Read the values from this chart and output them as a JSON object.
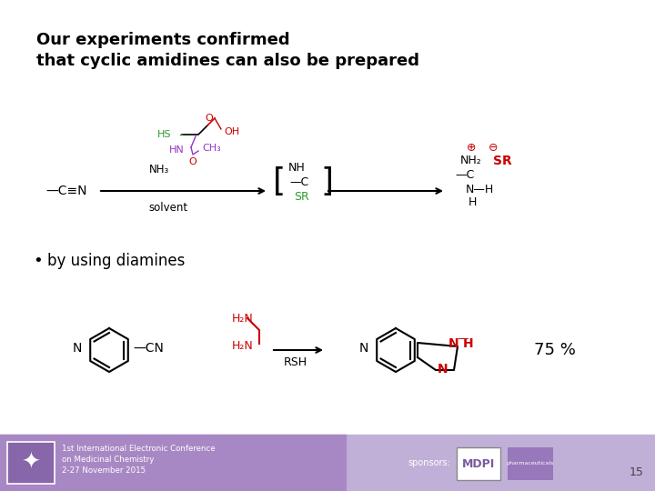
{
  "title_line1": "Our experiments confirmed",
  "title_line2": "that cyclic amidines can also be prepared",
  "bullet_text": "by using diamines",
  "yield_text": "75 %",
  "footer_line1": "1st International Electronic Conference",
  "footer_line2": "on Medicinal Chemistry",
  "footer_line3": "2-27 November 2015",
  "footer_sponsors": "sponsors:",
  "page_number": "15",
  "background_color": "#ffffff",
  "title_color": "#000000",
  "red_color": "#cc0000",
  "green_color": "#2a9d2a",
  "purple_color": "#9933cc",
  "blue_color": "#0000cc"
}
